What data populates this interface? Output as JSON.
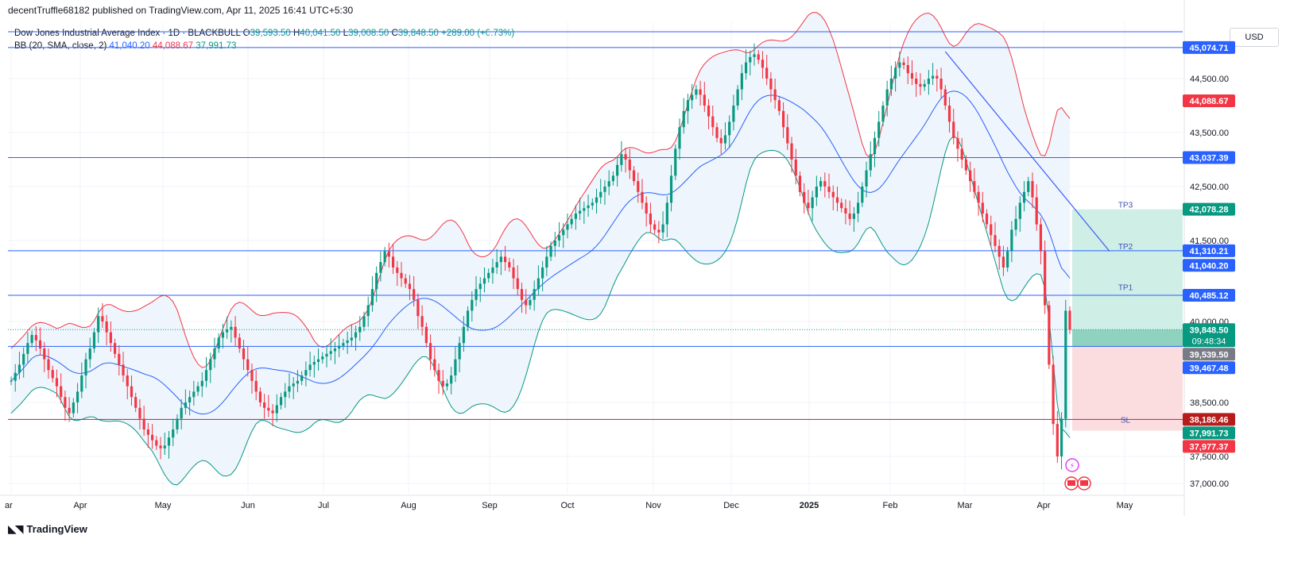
{
  "header": {
    "published_by": "decentTruffle68182 published on TradingView.com, Apr 11, 2025 16:41 UTC+5:30"
  },
  "legend": {
    "symbol": "Dow Jones Industrial Average Index · 1D · BLACKBULL",
    "o_label": "O",
    "o_value": "39,593.50",
    "h_label": "H",
    "h_value": "40,041.50",
    "l_label": "L",
    "l_value": "39,008.50",
    "c_label": "C",
    "c_value": "39,848.50",
    "change": "+289.00 (+0.73%)",
    "bb_label": "BB (20, SMA, close, 2)",
    "bb_basis": "41,040.20",
    "bb_upper": "44,088.67",
    "bb_lower": "37,991.73"
  },
  "currency": "USD",
  "footer": {
    "brand": "TradingView",
    "logo_icon": "tradingview-logo-icon"
  },
  "colors": {
    "up": "#089981",
    "down": "#f23645",
    "basis": "#2962ff",
    "upper": "#f23645",
    "lower": "#089981",
    "band_fill": "#eef5fc",
    "hline": "#2962ff",
    "sl_line": "#c2185b",
    "profit_zone": "#cfeee5",
    "loss_zone": "#fbdde0",
    "trend": "#3d5afe"
  },
  "chart_data": {
    "type": "candlestick",
    "y_range": [
      36800,
      46200
    ],
    "y_ticks": [
      {
        "value": 37000,
        "label": "37,000.00"
      },
      {
        "value": 37500,
        "label": "37,500.00"
      },
      {
        "value": 38500,
        "label": "38,500.00"
      },
      {
        "value": 40000,
        "label": "40,000.00"
      },
      {
        "value": 41500,
        "label": "41,500.00"
      },
      {
        "value": 42500,
        "label": "42,500.00"
      },
      {
        "value": 43500,
        "label": "43,500.00"
      },
      {
        "value": 44500,
        "label": "44,500.00"
      }
    ],
    "x_ticks": [
      {
        "label": "ar",
        "bold": false
      },
      {
        "label": "Apr",
        "bold": false
      },
      {
        "label": "May",
        "bold": false
      },
      {
        "label": "Jun",
        "bold": false
      },
      {
        "label": "Jul",
        "bold": false
      },
      {
        "label": "Aug",
        "bold": false
      },
      {
        "label": "Sep",
        "bold": false
      },
      {
        "label": "Oct",
        "bold": false
      },
      {
        "label": "Nov",
        "bold": false
      },
      {
        "label": "Dec",
        "bold": false
      },
      {
        "label": "2025",
        "bold": true
      },
      {
        "label": "Feb",
        "bold": false
      },
      {
        "label": "Mar",
        "bold": false
      },
      {
        "label": "Apr",
        "bold": false
      },
      {
        "label": "May",
        "bold": false
      }
    ],
    "close_series": [
      38900,
      39050,
      39200,
      39400,
      39600,
      39750,
      39650,
      39500,
      39300,
      39100,
      38950,
      38800,
      38600,
      38400,
      38300,
      38500,
      38700,
      39000,
      39300,
      39500,
      39800,
      40100,
      40000,
      39800,
      39600,
      39400,
      39200,
      39000,
      38800,
      38600,
      38400,
      38200,
      38000,
      37900,
      37800,
      37700,
      37650,
      37700,
      37850,
      38000,
      38200,
      38400,
      38500,
      38600,
      38700,
      38800,
      38900,
      39100,
      39300,
      39500,
      39700,
      39800,
      39850,
      39900,
      39700,
      39500,
      39300,
      39100,
      38900,
      38700,
      38500,
      38400,
      38350,
      38300,
      38450,
      38600,
      38700,
      38800,
      38850,
      38900,
      39000,
      39100,
      39200,
      39250,
      39300,
      39350,
      39400,
      39450,
      39500,
      39550,
      39600,
      39650,
      39700,
      39800,
      39900,
      40100,
      40300,
      40600,
      40900,
      41100,
      41300,
      41200,
      41000,
      40900,
      40800,
      40700,
      40600,
      40400,
      40100,
      39900,
      39600,
      39300,
      39100,
      38900,
      38800,
      38850,
      39000,
      39300,
      39600,
      39900,
      40200,
      40400,
      40600,
      40700,
      40800,
      40900,
      41000,
      41100,
      41200,
      41100,
      41000,
      40800,
      40600,
      40400,
      40300,
      40400,
      40600,
      40800,
      41000,
      41200,
      41400,
      41500,
      41600,
      41700,
      41800,
      41900,
      42000,
      42050,
      42100,
      42150,
      42200,
      42300,
      42400,
      42500,
      42600,
      42700,
      42900,
      43100,
      43000,
      42800,
      42600,
      42400,
      42200,
      42000,
      41800,
      41700,
      41650,
      41800,
      42200,
      42700,
      43200,
      43600,
      43900,
      44100,
      44200,
      44300,
      44200,
      44000,
      43800,
      43600,
      43400,
      43300,
      43450,
      43700,
      44000,
      44300,
      44600,
      44800,
      44900,
      44950,
      44850,
      44700,
      44500,
      44300,
      44100,
      43900,
      43600,
      43300,
      43000,
      42700,
      42400,
      42200,
      42100,
      42300,
      42500,
      42600,
      42500,
      42400,
      42300,
      42200,
      42100,
      42000,
      41900,
      42000,
      42200,
      42500,
      42800,
      43100,
      43400,
      43700,
      44000,
      44300,
      44500,
      44700,
      44800,
      44750,
      44600,
      44500,
      44400,
      44350,
      44400,
      44500,
      44550,
      44500,
      44300,
      44000,
      43700,
      43400,
      43200,
      43000,
      42800,
      42600,
      42400,
      42200,
      42000,
      41800,
      41600,
      41400,
      41200,
      41000,
      41300,
      41700,
      41900,
      42200,
      42400,
      42600,
      42300,
      41800,
      41300,
      40300,
      39200,
      38100,
      37500,
      38200,
      40200,
      39848
    ],
    "horizontal_levels": [
      {
        "value": 45074.71,
        "label": "45,074.71",
        "style": "blue"
      },
      {
        "value": 43037.39,
        "label": "43,037.39",
        "style": "blue"
      },
      {
        "value": 41310.21,
        "label": "41,310.21",
        "style": "blue"
      },
      {
        "value": 40485.12,
        "label": "40,485.12",
        "style": "blue"
      },
      {
        "value": 39539.5,
        "label": "39,539.50",
        "style": "blue"
      },
      {
        "value": 38186.46,
        "label": "38,186.46",
        "style": "sl"
      }
    ],
    "price_tags": [
      {
        "value": 45074.71,
        "label": "45,074.71",
        "bg": "#2962ff"
      },
      {
        "value": 44088.67,
        "label": "44,088.67",
        "bg": "#f23645"
      },
      {
        "value": 43037.39,
        "label": "43,037.39",
        "bg": "#2962ff"
      },
      {
        "value": 42078.28,
        "label": "42,078.28",
        "bg": "#089981"
      },
      {
        "value": 41310.21,
        "label": "41,310.21",
        "bg": "#2962ff"
      },
      {
        "value": 41040.2,
        "label": "41,040.20",
        "bg": "#2962ff"
      },
      {
        "value": 40485.12,
        "label": "40,485.12",
        "bg": "#2962ff"
      },
      {
        "value": 39848.5,
        "label": "39,848.50",
        "sub": "09:48:34",
        "bg": "#089981"
      },
      {
        "value": 39539.5,
        "label": "39,539.50",
        "bg": "#787b86"
      },
      {
        "value": 39467.48,
        "label": "39,467.48",
        "bg": "#2962ff"
      },
      {
        "value": 38186.46,
        "label": "38,186.46",
        "bg": "#b71c1c"
      },
      {
        "value": 37991.73,
        "label": "37,991.73",
        "bg": "#089981"
      },
      {
        "value": 37977.37,
        "label": "37,977.37",
        "bg": "#f23645"
      }
    ],
    "position": {
      "entry": 39539.5,
      "take_profit": 42078.28,
      "stop_loss": 37977.37,
      "labels": [
        {
          "text": "TP3",
          "value": 42170
        },
        {
          "text": "TP2",
          "value": 41400
        },
        {
          "text": "TP1",
          "value": 40640
        },
        {
          "text": "SL",
          "value": 38186
        }
      ]
    },
    "trendline": [
      {
        "index": 225,
        "value": 45000
      },
      {
        "index": 271,
        "value": 41300
      }
    ]
  }
}
